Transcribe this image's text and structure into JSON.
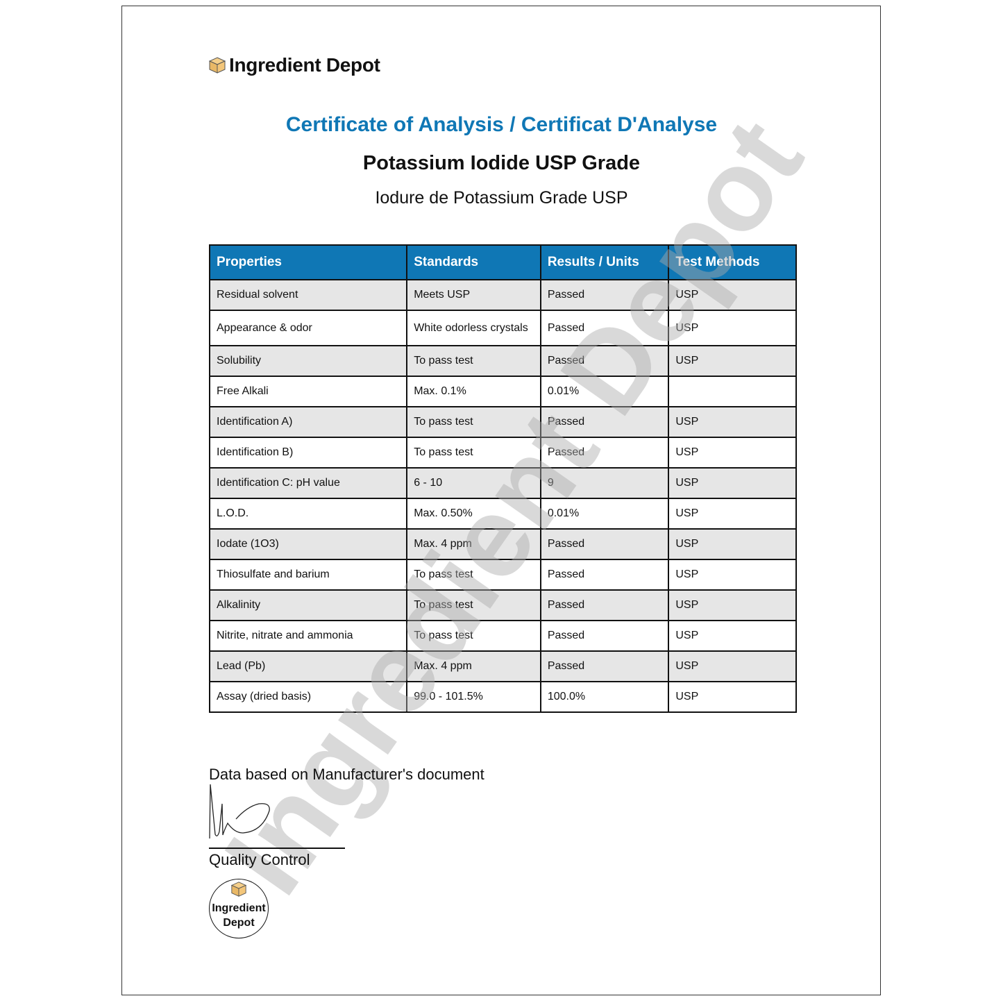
{
  "brand": {
    "name": "Ingredient Depot",
    "icon": "box-icon",
    "accent": "#0f77b5"
  },
  "header": {
    "title": "Certificate of Analysis / Certificat D'Analyse",
    "product": "Potassium Iodide USP Grade",
    "product_fr": "Iodure de Potassium Grade USP"
  },
  "table": {
    "columns": [
      "Properties",
      "Standards",
      "Results / Units",
      "Test Methods"
    ],
    "rows": [
      [
        "Residual solvent",
        "Meets USP",
        "Passed",
        "USP"
      ],
      [
        "Appearance & odor",
        "White odorless crystals",
        "Passed",
        "USP"
      ],
      [
        "Solubility",
        "To pass test",
        "Passed",
        "USP"
      ],
      [
        "Free Alkali",
        "Max. 0.1%",
        "0.01%",
        ""
      ],
      [
        "Identification A)",
        "To pass test",
        "Passed",
        "USP"
      ],
      [
        "Identification B)",
        "To pass test",
        "Passed",
        "USP"
      ],
      [
        "Identification C: pH value",
        "6 - 10",
        "9",
        "USP"
      ],
      [
        "L.O.D.",
        "Max. 0.50%",
        "0.01%",
        "USP"
      ],
      [
        "Iodate (1O3)",
        "Max. 4 ppm",
        "Passed",
        "USP"
      ],
      [
        "Thiosulfate and barium",
        "To pass test",
        "Passed",
        "USP"
      ],
      [
        "Alkalinity",
        "To pass test",
        "Passed",
        "USP"
      ],
      [
        "Nitrite, nitrate and ammonia",
        "To pass test",
        "Passed",
        "USP"
      ],
      [
        "Lead (Pb)",
        "Max. 4 ppm",
        "Passed",
        "USP"
      ],
      [
        "Assay (dried basis)",
        "99.0 - 101.5%",
        "100.0%",
        "USP"
      ]
    ]
  },
  "footer": {
    "note": "Data based on Manufacturer's document",
    "signature_label": "Quality Control",
    "stamp": [
      "Ingredient",
      "Depot"
    ]
  },
  "watermark": "Ingredient Depot"
}
